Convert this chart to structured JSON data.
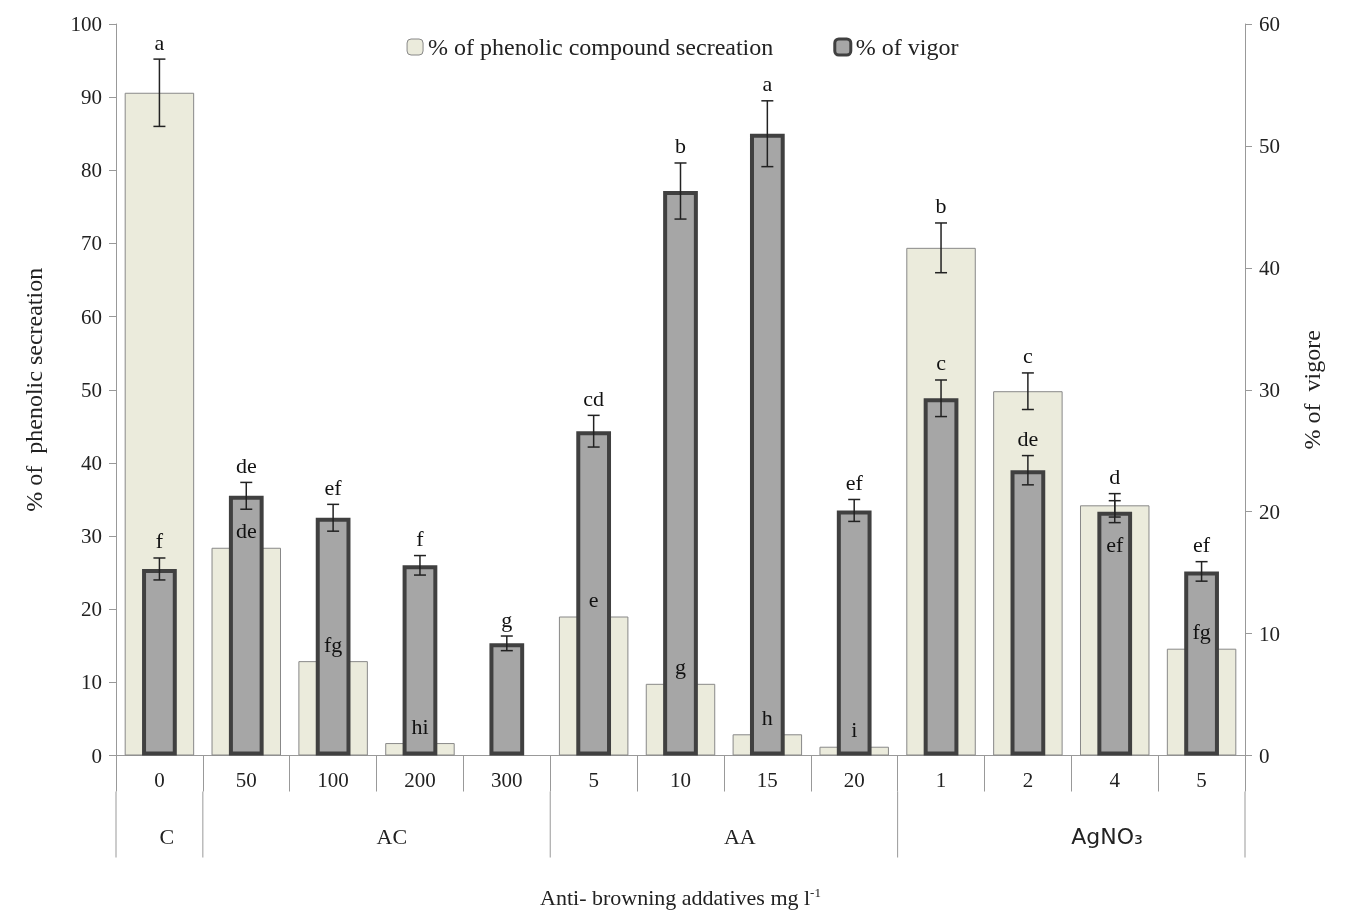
{
  "chart_data": {
    "type": "bar",
    "xlabel": "Anti- browning addatives mg l$^{-1}$",
    "ylabel": "% of  phenolic secreation",
    "y2label": "% of  vigore",
    "categories": [
      "0",
      "50",
      "100",
      "200",
      "300",
      "5",
      "10",
      "15",
      "20",
      "1",
      "2",
      "4",
      "5"
    ],
    "series": [
      {
        "name": "% of phenolic compound secreation",
        "color": "#ebebdc",
        "values": [
          90.6,
          28.4,
          12.9,
          1.7,
          0,
          19.0,
          9.8,
          2.9,
          1.2,
          69.4,
          49.8,
          34.2,
          14.6
        ],
        "errors": [
          4.6,
          null,
          null,
          null,
          null,
          null,
          null,
          null,
          null,
          3.4,
          2.5,
          1.6,
          null
        ],
        "value_labels": [
          "a",
          "de",
          "fg",
          "hi",
          null,
          "e",
          "g",
          "h",
          "i",
          "b",
          "c",
          "d",
          "fg"
        ]
      },
      {
        "name": "% of vigor",
        "axis": "y2",
        "color": "#a6a6a6",
        "values": [
          15.3,
          21.3,
          19.5,
          15.6,
          9.2,
          26.6,
          46.3,
          51.0,
          20.1,
          29.3,
          23.4,
          20.0,
          15.1
        ],
        "errors": [
          0.9,
          1.1,
          1.1,
          0.8,
          0.6,
          1.3,
          2.3,
          2.7,
          0.9,
          1.5,
          1.2,
          0.9,
          0.8
        ],
        "value_labels": [
          "f",
          "de",
          "ef",
          "f",
          "g",
          "cd",
          "b",
          "a",
          "ef",
          "c",
          "de",
          "ef",
          "ef"
        ]
      }
    ],
    "ylim": [
      0,
      100
    ],
    "yticks": [
      0,
      10,
      20,
      30,
      40,
      50,
      60,
      70,
      80,
      90,
      100
    ],
    "y2lim": [
      0,
      60
    ],
    "y2ticks": [
      0,
      10,
      20,
      30,
      40,
      50,
      60
    ],
    "annotations": [
      "C",
      "AC",
      "AA",
      "AgNO₃"
    ],
    "grid": false,
    "legend": "top"
  }
}
